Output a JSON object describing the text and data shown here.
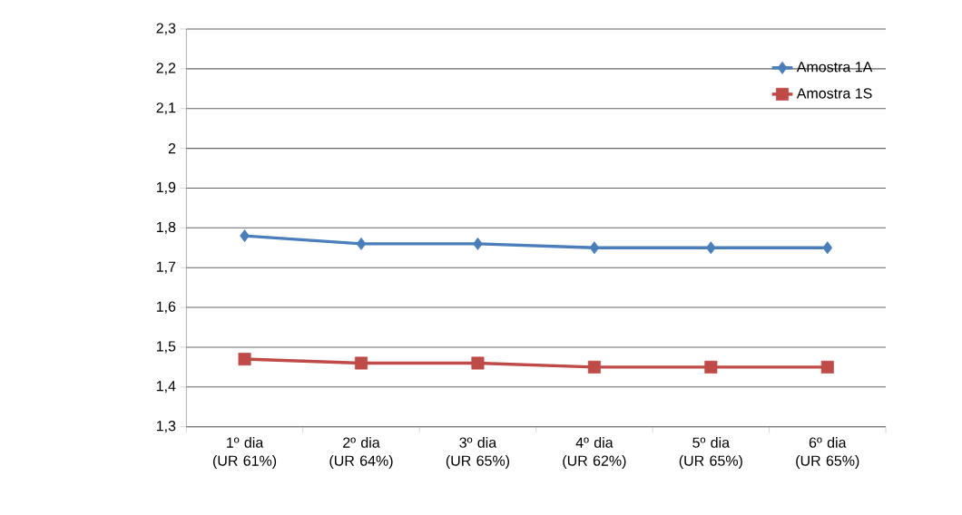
{
  "chart_data": {
    "type": "line",
    "categories": [
      "1º dia (UR 61%)",
      "2º dia (UR 64%)",
      "3º dia (UR 65%)",
      "4º dia (UR 62%)",
      "5º dia (UR 65%)",
      "6º dia (UR 65%)"
    ],
    "series": [
      {
        "name": "Amostra 1A",
        "color": "#4a7ebb",
        "marker": "diamond",
        "values": [
          1.78,
          1.76,
          1.76,
          1.75,
          1.75,
          1.75
        ]
      },
      {
        "name": "Amostra 1S",
        "color": "#be4b48",
        "marker": "square",
        "values": [
          1.47,
          1.46,
          1.46,
          1.45,
          1.45,
          1.45
        ]
      }
    ],
    "ylim": [
      1.3,
      2.3
    ],
    "yticks": [
      {
        "value": 1.3,
        "label": "1,3"
      },
      {
        "value": 1.4,
        "label": "1,4"
      },
      {
        "value": 1.5,
        "label": "1,5"
      },
      {
        "value": 1.6,
        "label": "1,6"
      },
      {
        "value": 1.7,
        "label": "1,7"
      },
      {
        "value": 1.8,
        "label": "1,8"
      },
      {
        "value": 1.9,
        "label": "1,9"
      },
      2,
      {
        "value": 2.1,
        "label": "2,1"
      },
      {
        "value": 2.2,
        "label": "2,2"
      },
      {
        "value": 2.3,
        "label": "2,3"
      }
    ],
    "grid": "y",
    "legend": "top right",
    "line_style": "solid"
  }
}
